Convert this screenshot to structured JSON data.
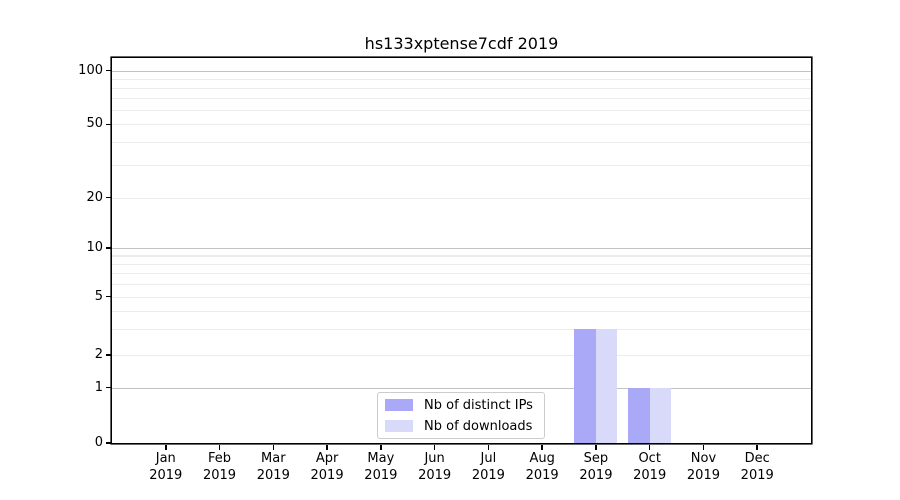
{
  "chart_data": {
    "type": "bar",
    "title": "hs133xptense7cdf 2019",
    "categories": [
      {
        "month": "Jan",
        "year": "2019"
      },
      {
        "month": "Feb",
        "year": "2019"
      },
      {
        "month": "Mar",
        "year": "2019"
      },
      {
        "month": "Apr",
        "year": "2019"
      },
      {
        "month": "May",
        "year": "2019"
      },
      {
        "month": "Jun",
        "year": "2019"
      },
      {
        "month": "Jul",
        "year": "2019"
      },
      {
        "month": "Aug",
        "year": "2019"
      },
      {
        "month": "Sep",
        "year": "2019"
      },
      {
        "month": "Oct",
        "year": "2019"
      },
      {
        "month": "Nov",
        "year": "2019"
      },
      {
        "month": "Dec",
        "year": "2019"
      }
    ],
    "series": [
      {
        "name": "Nb of distinct IPs",
        "color": "#a9a9f7",
        "values": [
          0,
          0,
          0,
          0,
          0,
          0,
          0,
          0,
          3,
          1,
          0,
          0
        ]
      },
      {
        "name": "Nb of downloads",
        "color": "#d9d9f9",
        "values": [
          0,
          0,
          0,
          0,
          0,
          0,
          0,
          0,
          3,
          1,
          0,
          0
        ]
      }
    ],
    "yscale": "symlog",
    "ylim": [
      0,
      100
    ],
    "ytick_values": [
      0,
      1,
      2,
      5,
      10,
      20,
      50,
      100
    ],
    "ytick_labels": [
      "0",
      "1",
      "2",
      "5",
      "10",
      "20",
      "50",
      "100"
    ],
    "grid": "horizontal-only",
    "legend_position": "lower center"
  },
  "colors": {
    "major_grid": "#c3c3c3",
    "minor_grid": "#ececec",
    "axis": "#000000",
    "legend_border": "#cccccc"
  }
}
